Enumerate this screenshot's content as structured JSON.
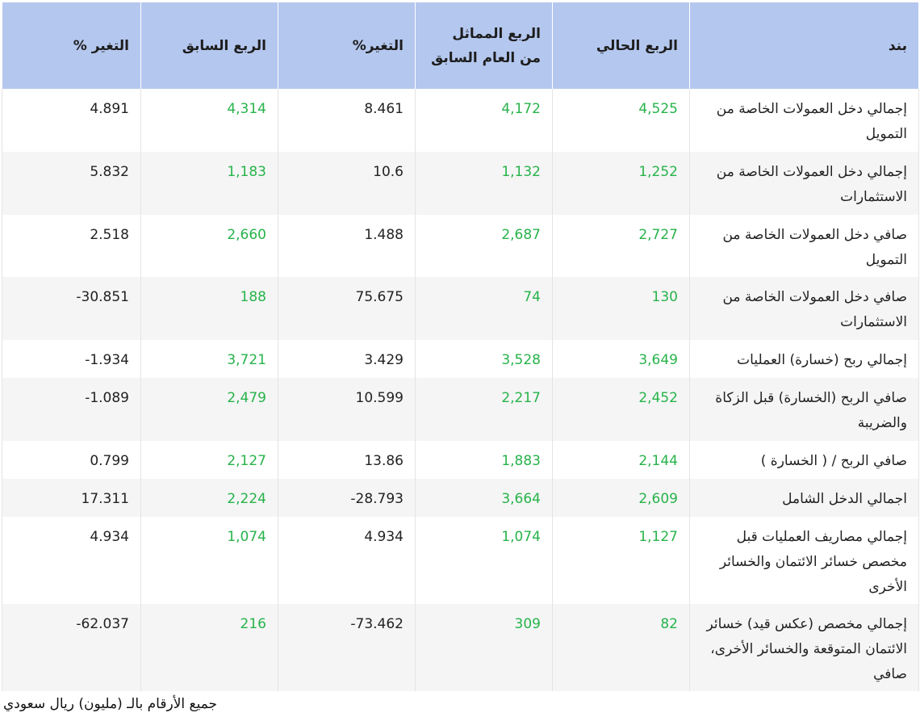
{
  "headers": {
    "item": "بند",
    "current_quarter": "الربع الحالي",
    "same_quarter_last_year": "الربع المماثل من العام السابق",
    "change_pct_yoy": "التغير%",
    "previous_quarter": "الربع السابق",
    "change_pct_qoq": "التغير %"
  },
  "rows": [
    {
      "item": "إجمالي دخل العمولات الخاصة من التمويل",
      "current": "4,525",
      "same_last_year": "4,172",
      "change_yoy": "8.461",
      "previous": "4,314",
      "change_qoq": "4.891"
    },
    {
      "item": "إجمالي دخل العمولات الخاصة من الاستثمارات",
      "current": "1,252",
      "same_last_year": "1,132",
      "change_yoy": "10.6",
      "previous": "1,183",
      "change_qoq": "5.832"
    },
    {
      "item": "صافي دخل العمولات الخاصة من التمويل",
      "current": "2,727",
      "same_last_year": "2,687",
      "change_yoy": "1.488",
      "previous": "2,660",
      "change_qoq": "2.518"
    },
    {
      "item": "صافي دخل العمولات الخاصة من الاستثمارات",
      "current": "130",
      "same_last_year": "74",
      "change_yoy": "75.675",
      "previous": "188",
      "change_qoq": "30.851-"
    },
    {
      "item": "إجمالي ربح (خسارة) العمليات",
      "current": "3,649",
      "same_last_year": "3,528",
      "change_yoy": "3.429",
      "previous": "3,721",
      "change_qoq": "1.934-"
    },
    {
      "item": "صافي الربح (الخسارة) قبل الزكاة والضريبة",
      "current": "2,452",
      "same_last_year": "2,217",
      "change_yoy": "10.599",
      "previous": "2,479",
      "change_qoq": "1.089-"
    },
    {
      "item": "صافي الربح / ( الخسارة )",
      "current": "2,144",
      "same_last_year": "1,883",
      "change_yoy": "13.86",
      "previous": "2,127",
      "change_qoq": "0.799"
    },
    {
      "item": "اجمالي الدخل الشامل",
      "current": "2,609",
      "same_last_year": "3,664",
      "change_yoy": "28.793-",
      "previous": "2,224",
      "change_qoq": "17.311"
    },
    {
      "item": "إجمالي مصاريف العمليات قبل مخصص خسائر الائتمان والخسائر الأخرى",
      "current": "1,127",
      "same_last_year": "1,074",
      "change_yoy": "4.934",
      "previous": "1,074",
      "change_qoq": "4.934"
    },
    {
      "item": "إجمالي مخصص (عكس قيد) خسائر الائتمان المتوقعة والخسائر الأخرى، صافي",
      "current": "82",
      "same_last_year": "309",
      "change_yoy": "73.462-",
      "previous": "216",
      "change_qoq": "62.037-"
    }
  ],
  "footnote": "جميع الأرقام بالـ (مليون) ريال سعودي",
  "colors": {
    "header_bg": "#b4c7ee",
    "value_green": "#27b34a",
    "stripe": "#f5f5f5"
  }
}
